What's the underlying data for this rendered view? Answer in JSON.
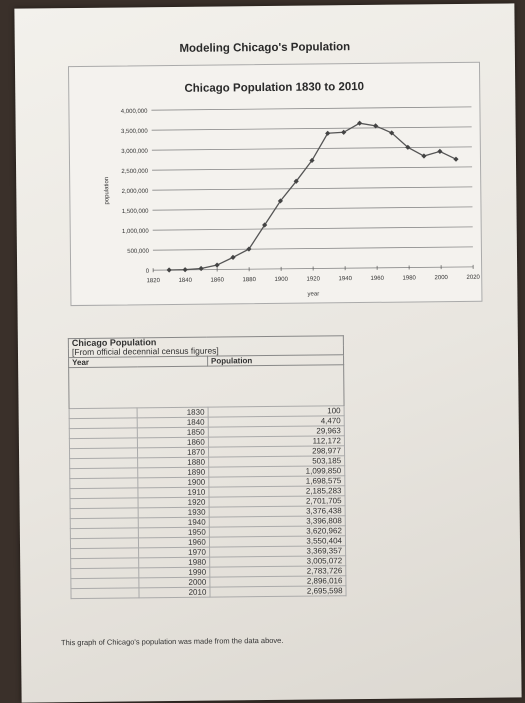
{
  "document": {
    "title": "Modeling Chicago's Population",
    "caption": "This graph of Chicago's population was made from the data above."
  },
  "table": {
    "title": "Chicago Population",
    "subtitle": "[From official decennial census figures]",
    "col_year": "Year",
    "col_population": "Population",
    "rows": [
      {
        "year": "1830",
        "population": "100"
      },
      {
        "year": "1840",
        "population": "4,470"
      },
      {
        "year": "1850",
        "population": "29,963"
      },
      {
        "year": "1860",
        "population": "112,172"
      },
      {
        "year": "1870",
        "population": "298,977"
      },
      {
        "year": "1880",
        "population": "503,185"
      },
      {
        "year": "1890",
        "population": "1,099,850"
      },
      {
        "year": "1900",
        "population": "1,698,575"
      },
      {
        "year": "1910",
        "population": "2,185,283"
      },
      {
        "year": "1920",
        "population": "2,701,705"
      },
      {
        "year": "1930",
        "population": "3,376,438"
      },
      {
        "year": "1940",
        "population": "3,396,808"
      },
      {
        "year": "1950",
        "population": "3,620,962"
      },
      {
        "year": "1960",
        "population": "3,550,404"
      },
      {
        "year": "1970",
        "population": "3,369,357"
      },
      {
        "year": "1980",
        "population": "3,005,072"
      },
      {
        "year": "1990",
        "population": "2,783,726"
      },
      {
        "year": "2000",
        "population": "2,896,016"
      },
      {
        "year": "2010",
        "population": "2,695,598"
      }
    ]
  },
  "chart_data": {
    "type": "line",
    "title": "Chicago Population 1830 to 2010",
    "xlabel": "year",
    "ylabel": "population",
    "x": [
      1830,
      1840,
      1850,
      1860,
      1870,
      1880,
      1890,
      1900,
      1910,
      1920,
      1930,
      1940,
      1950,
      1960,
      1970,
      1980,
      1990,
      2000,
      2010
    ],
    "y": [
      100,
      4470,
      29963,
      112172,
      298977,
      503185,
      1099850,
      1698575,
      2185283,
      2701705,
      3376438,
      3396808,
      3620962,
      3550404,
      3369357,
      3005072,
      2783726,
      2896016,
      2695598
    ],
    "xlim": [
      1820,
      2020
    ],
    "ylim": [
      0,
      4000000
    ],
    "x_ticks": [
      "1820",
      "1840",
      "1860",
      "1880",
      "1900",
      "1920",
      "1940",
      "1960",
      "1980",
      "2000",
      "2020"
    ],
    "y_ticks": [
      "0",
      "500,000",
      "1,000,000",
      "1,500,000",
      "2,000,000",
      "2,500,000",
      "3,000,000",
      "3,500,000",
      "4,000,000"
    ],
    "grid": "horizontal",
    "line_color": "#555555",
    "marker": "diamond"
  }
}
